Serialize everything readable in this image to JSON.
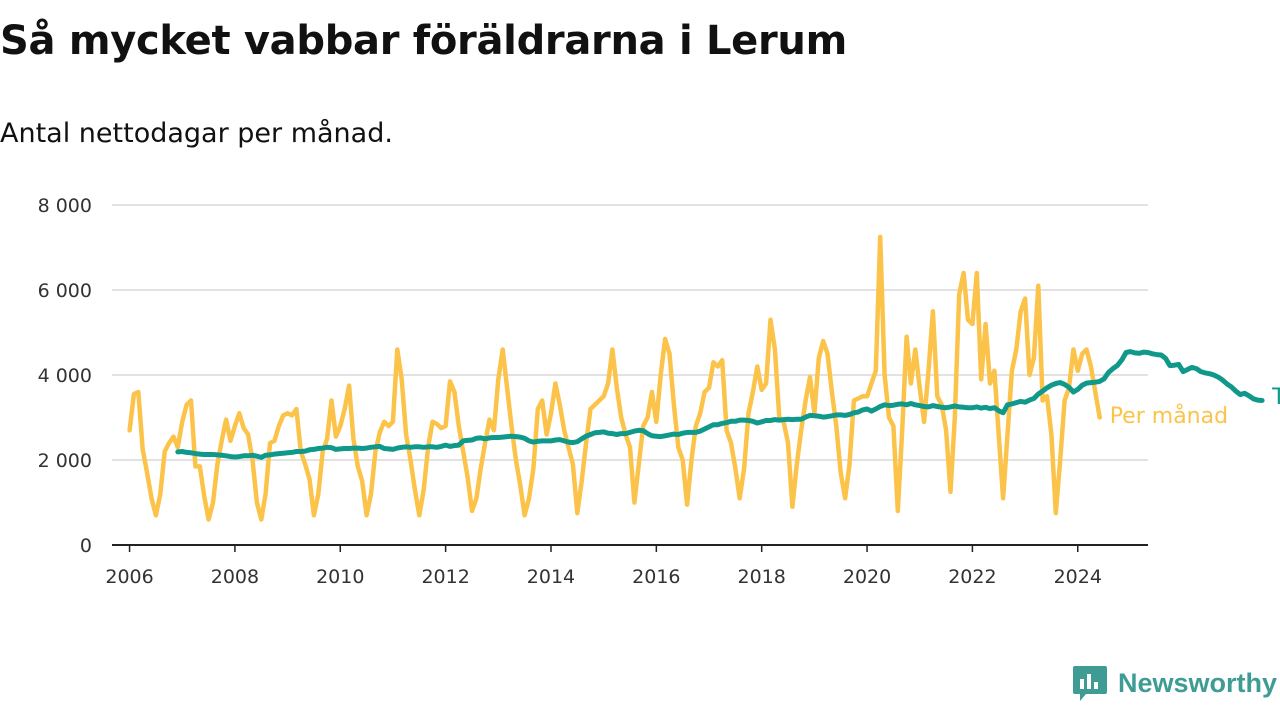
{
  "header": {
    "title": "Så mycket vabbar föräldrarna i Lerum",
    "subtitle": "Antal nettodagar per månad."
  },
  "brand": {
    "name": "Newsworthy",
    "logo_icon": "bar-chart-icon",
    "color": "#3f9c95"
  },
  "chart_data": {
    "type": "line",
    "title": "Så mycket vabbar föräldrarna i Lerum",
    "subtitle": "Antal nettodagar per månad.",
    "xlabel": "",
    "ylabel": "",
    "ylim": [
      0,
      8000
    ],
    "xlim": [
      "2005-09",
      "2025-05"
    ],
    "y_ticks": [
      {
        "value": 0,
        "label": "0"
      },
      {
        "value": 2000,
        "label": "2 000"
      },
      {
        "value": 4000,
        "label": "4 000"
      },
      {
        "value": 6000,
        "label": "6 000"
      },
      {
        "value": 8000,
        "label": "8 000"
      }
    ],
    "x_ticks": [
      "2006",
      "2008",
      "2010",
      "2012",
      "2014",
      "2016",
      "2018",
      "2020",
      "2022",
      "2024"
    ],
    "grid": true,
    "legend": "end-of-line labels",
    "series": [
      {
        "name": "Per månad",
        "color": "#fcc34a",
        "start": "2006-01",
        "values": [
          2700,
          3550,
          3600,
          2250,
          1700,
          1100,
          700,
          1200,
          2200,
          2400,
          2550,
          2300,
          2900,
          3300,
          3400,
          1850,
          1850,
          1150,
          600,
          1000,
          1900,
          2450,
          2950,
          2450,
          2800,
          3100,
          2750,
          2600,
          2000,
          1000,
          600,
          1200,
          2400,
          2450,
          2800,
          3050,
          3100,
          3050,
          3200,
          2200,
          1900,
          1550,
          700,
          1200,
          2200,
          2500,
          3400,
          2550,
          2800,
          3200,
          3750,
          2500,
          1850,
          1500,
          700,
          1200,
          2200,
          2650,
          2900,
          2800,
          2900,
          4600,
          3900,
          2600,
          2000,
          1300,
          700,
          1300,
          2300,
          2900,
          2850,
          2750,
          2800,
          3850,
          3600,
          2800,
          2200,
          1600,
          800,
          1100,
          1800,
          2400,
          2950,
          2700,
          3900,
          4600,
          3700,
          2800,
          2000,
          1400,
          700,
          1100,
          1800,
          3200,
          3400,
          2600,
          3100,
          3800,
          3300,
          2700,
          2300,
          1900,
          750,
          1500,
          2400,
          3200,
          3300,
          3400,
          3500,
          3800,
          4600,
          3700,
          3000,
          2600,
          2300,
          1000,
          1900,
          2800,
          3000,
          3600,
          2900,
          4000,
          4850,
          4500,
          3300,
          2300,
          2000,
          950,
          2000,
          2800,
          3100,
          3600,
          3700,
          4300,
          4200,
          4350,
          2700,
          2400,
          1800,
          1100,
          1800,
          3100,
          3600,
          4200,
          3650,
          3800,
          5300,
          4600,
          3000,
          2900,
          2400,
          900,
          1900,
          2700,
          3400,
          3950,
          3100,
          4400,
          4800,
          4500,
          3600,
          2800,
          1700,
          1100,
          1900,
          3400,
          3450,
          3500,
          3500,
          3800,
          4100,
          7250,
          4000,
          3000,
          2800,
          800,
          2700,
          4900,
          3800,
          4600,
          3700,
          2900,
          4100,
          5500,
          3500,
          3300,
          2700,
          1250,
          3000,
          5900,
          6400,
          5300,
          5200,
          6400,
          3900,
          5200,
          3800,
          4100,
          2600,
          1100,
          2600,
          4100,
          4600,
          5500,
          5800,
          4000,
          4400,
          6100,
          3400,
          3500,
          2600,
          750,
          2000,
          3400,
          3700,
          4600,
          4100,
          4500,
          4600,
          4200,
          3600,
          3000
        ]
      },
      {
        "name": "Trend",
        "color": "#10998a",
        "start": "2006-12",
        "values": [
          2190,
          2200,
          2180,
          2170,
          2150,
          2140,
          2130,
          2130,
          2130,
          2120,
          2110,
          2100,
          2080,
          2070,
          2080,
          2100,
          2100,
          2110,
          2090,
          2060,
          2110,
          2120,
          2140,
          2150,
          2160,
          2170,
          2180,
          2200,
          2200,
          2210,
          2240,
          2250,
          2270,
          2280,
          2300,
          2290,
          2250,
          2260,
          2270,
          2270,
          2280,
          2280,
          2270,
          2280,
          2300,
          2310,
          2320,
          2270,
          2260,
          2250,
          2280,
          2300,
          2310,
          2300,
          2310,
          2310,
          2300,
          2310,
          2310,
          2300,
          2320,
          2350,
          2320,
          2340,
          2350,
          2450,
          2460,
          2470,
          2510,
          2520,
          2500,
          2520,
          2530,
          2530,
          2540,
          2550,
          2560,
          2550,
          2540,
          2510,
          2450,
          2420,
          2440,
          2450,
          2450,
          2450,
          2470,
          2480,
          2450,
          2420,
          2410,
          2430,
          2500,
          2560,
          2600,
          2640,
          2650,
          2660,
          2630,
          2620,
          2600,
          2620,
          2620,
          2650,
          2680,
          2700,
          2690,
          2620,
          2570,
          2560,
          2550,
          2570,
          2590,
          2610,
          2600,
          2630,
          2650,
          2650,
          2650,
          2680,
          2730,
          2780,
          2830,
          2830,
          2860,
          2880,
          2910,
          2910,
          2940,
          2940,
          2930,
          2910,
          2870,
          2900,
          2930,
          2930,
          2950,
          2940,
          2950,
          2960,
          2950,
          2960,
          2960,
          3010,
          3050,
          3040,
          3030,
          3010,
          3020,
          3040,
          3060,
          3060,
          3050,
          3070,
          3110,
          3130,
          3180,
          3200,
          3150,
          3200,
          3260,
          3300,
          3280,
          3290,
          3310,
          3320,
          3300,
          3330,
          3300,
          3280,
          3260,
          3250,
          3280,
          3260,
          3240,
          3230,
          3250,
          3270,
          3250,
          3240,
          3230,
          3230,
          3250,
          3220,
          3240,
          3210,
          3230,
          3160,
          3110,
          3300,
          3320,
          3350,
          3380,
          3360,
          3410,
          3450,
          3550,
          3620,
          3700,
          3760,
          3800,
          3820,
          3780,
          3710,
          3600,
          3660,
          3760,
          3810,
          3820,
          3830,
          3850,
          3910,
          4060,
          4150,
          4220,
          4350,
          4530,
          4550,
          4520,
          4510,
          4540,
          4530,
          4500,
          4480,
          4470,
          4390,
          4220,
          4230,
          4250,
          4080,
          4130,
          4180,
          4150,
          4080,
          4050,
          4030,
          4000,
          3950,
          3880,
          3790,
          3720,
          3620,
          3540,
          3570,
          3510,
          3440,
          3410,
          3400
        ]
      }
    ]
  }
}
